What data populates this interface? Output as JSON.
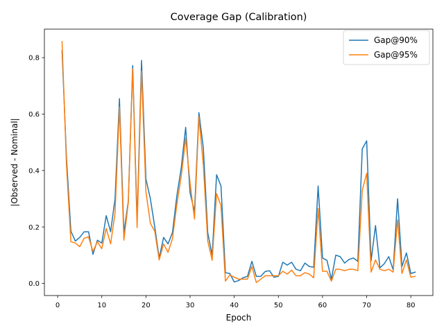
{
  "chart_data": {
    "type": "line",
    "title": "Coverage Gap (Calibration)",
    "xlabel": "Epoch",
    "ylabel": "|Observed - Nominal|",
    "xlim": [
      -3,
      85
    ],
    "ylim": [
      -0.043,
      0.901
    ],
    "xticks": [
      0,
      10,
      20,
      30,
      40,
      50,
      60,
      70,
      80
    ],
    "xtick_labels": [
      "0",
      "10",
      "20",
      "30",
      "40",
      "50",
      "60",
      "70",
      "80"
    ],
    "yticks": [
      0.0,
      0.2,
      0.4,
      0.6,
      0.8
    ],
    "ytick_labels": [
      "0.0",
      "0.2",
      "0.4",
      "0.6",
      "0.8"
    ],
    "grid": false,
    "legend_position": "top-right",
    "x": [
      1,
      2,
      3,
      4,
      5,
      6,
      7,
      8,
      9,
      10,
      11,
      12,
      13,
      14,
      15,
      16,
      17,
      18,
      19,
      20,
      21,
      22,
      23,
      24,
      25,
      26,
      27,
      28,
      29,
      30,
      31,
      32,
      33,
      34,
      35,
      36,
      37,
      38,
      39,
      40,
      41,
      42,
      43,
      44,
      45,
      46,
      47,
      48,
      49,
      50,
      51,
      52,
      53,
      54,
      55,
      56,
      57,
      58,
      59,
      60,
      61,
      62,
      63,
      64,
      65,
      66,
      67,
      68,
      69,
      70,
      71,
      72,
      73,
      74,
      75,
      76,
      77,
      78,
      79,
      80,
      81
    ],
    "series": [
      {
        "name": "Gap@90%",
        "color": "#1f77b4",
        "values": [
          0.825,
          0.445,
          0.185,
          0.15,
          0.163,
          0.183,
          0.183,
          0.103,
          0.153,
          0.143,
          0.24,
          0.183,
          0.3,
          0.655,
          0.18,
          0.29,
          0.772,
          0.22,
          0.79,
          0.37,
          0.3,
          0.2,
          0.09,
          0.163,
          0.14,
          0.18,
          0.31,
          0.41,
          0.553,
          0.32,
          0.255,
          0.605,
          0.48,
          0.18,
          0.1,
          0.385,
          0.345,
          0.038,
          0.035,
          0.005,
          0.01,
          0.02,
          0.025,
          0.078,
          0.025,
          0.025,
          0.042,
          0.045,
          0.022,
          0.025,
          0.075,
          0.065,
          0.075,
          0.05,
          0.045,
          0.072,
          0.06,
          0.057,
          0.345,
          0.09,
          0.082,
          0.015,
          0.1,
          0.095,
          0.072,
          0.085,
          0.09,
          0.078,
          0.477,
          0.505,
          0.08,
          0.205,
          0.055,
          0.07,
          0.095,
          0.048,
          0.3,
          0.06,
          0.108,
          0.035,
          0.04
        ]
      },
      {
        "name": "Gap@95%",
        "color": "#ff7f0e",
        "values": [
          0.857,
          0.42,
          0.148,
          0.143,
          0.13,
          0.16,
          0.165,
          0.113,
          0.148,
          0.123,
          0.195,
          0.14,
          0.248,
          0.625,
          0.153,
          0.285,
          0.76,
          0.198,
          0.752,
          0.325,
          0.213,
          0.185,
          0.083,
          0.14,
          0.11,
          0.158,
          0.28,
          0.38,
          0.515,
          0.355,
          0.228,
          0.59,
          0.42,
          0.15,
          0.082,
          0.318,
          0.275,
          0.008,
          0.03,
          0.022,
          0.015,
          0.015,
          0.015,
          0.06,
          0.003,
          0.015,
          0.027,
          0.027,
          0.027,
          0.027,
          0.043,
          0.033,
          0.047,
          0.027,
          0.027,
          0.038,
          0.033,
          0.02,
          0.265,
          0.043,
          0.043,
          0.008,
          0.05,
          0.05,
          0.045,
          0.05,
          0.05,
          0.045,
          0.33,
          0.39,
          0.04,
          0.083,
          0.05,
          0.045,
          0.05,
          0.04,
          0.225,
          0.035,
          0.083,
          0.022,
          0.025
        ]
      }
    ]
  }
}
